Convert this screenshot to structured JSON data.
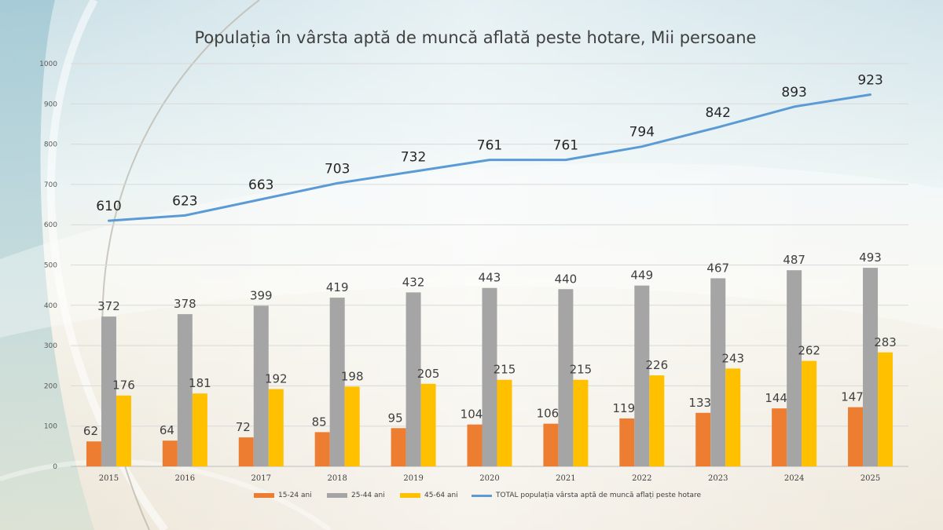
{
  "chart_data": {
    "type": "bar",
    "title": "Populația în vârsta aptă de muncă aflată peste hotare, Mii persoane",
    "categories": [
      "2015",
      "2016",
      "2017",
      "2018",
      "2019",
      "2020",
      "2021",
      "2022",
      "2023",
      "2024",
      "2025"
    ],
    "series": [
      {
        "name": "15-24 ani",
        "type": "bar",
        "color": "#ED7D31",
        "values": [
          62,
          64,
          72,
          85,
          95,
          104,
          106,
          119,
          133,
          144,
          147
        ]
      },
      {
        "name": "25-44 ani",
        "type": "bar",
        "color": "#A5A5A5",
        "values": [
          372,
          378,
          399,
          419,
          432,
          443,
          440,
          449,
          467,
          487,
          493
        ]
      },
      {
        "name": "45-64 ani",
        "type": "bar",
        "color": "#FFC000",
        "values": [
          176,
          181,
          192,
          198,
          205,
          215,
          215,
          226,
          243,
          262,
          283
        ]
      },
      {
        "name": "TOTAL populația vârsta aptă de muncă aflați peste hotare",
        "type": "line",
        "color": "#5B9BD5",
        "values": [
          610,
          623,
          663,
          703,
          732,
          761,
          761,
          794,
          842,
          893,
          923
        ]
      }
    ],
    "ylim": [
      0,
      1000
    ],
    "yticks": [
      0,
      100,
      200,
      300,
      400,
      500,
      600,
      700,
      800,
      900,
      1000
    ],
    "grid": true,
    "legend": "bottom",
    "xlabel": "",
    "ylabel": ""
  }
}
